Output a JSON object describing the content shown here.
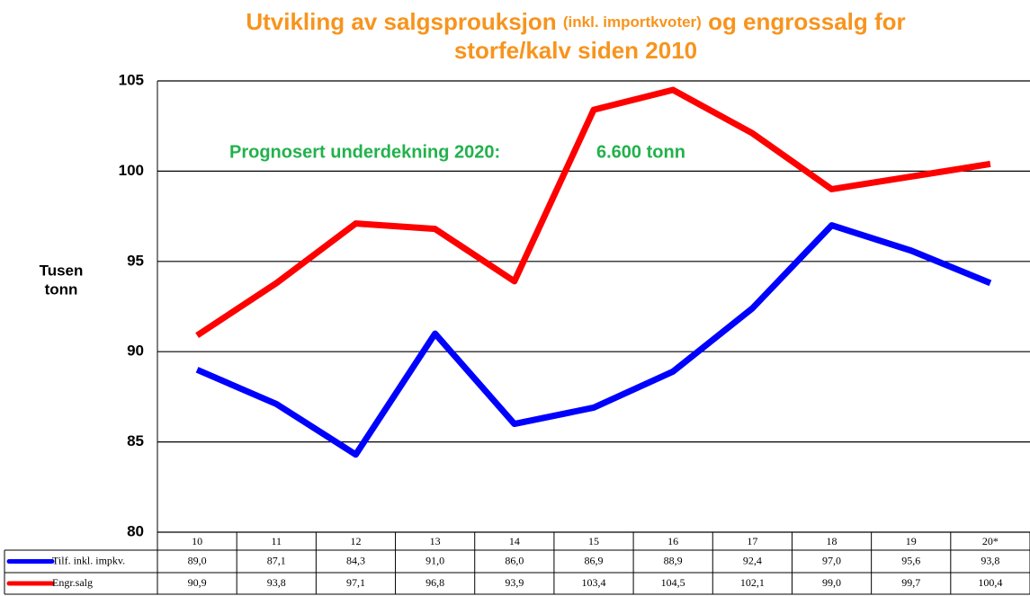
{
  "chart_data": {
    "type": "line",
    "title": [
      "Utvikling av salgsprouksjon ",
      "(inkl. importkvoter)",
      " og engrossalg for",
      "storfe/kalv siden 2010"
    ],
    "ylabel": [
      "Tusen",
      "tonn"
    ],
    "annotations": [
      "Prognosert underdekning 2020:",
      "6.600 tonn"
    ],
    "categories": [
      "10",
      "11",
      "12",
      "13",
      "14",
      "15",
      "16",
      "17",
      "18",
      "19",
      "20*"
    ],
    "series": [
      {
        "name": "Tilf. inkl. impkv.",
        "color": "#0000ff",
        "values": [
          89.0,
          87.1,
          84.3,
          91.0,
          86.0,
          86.9,
          88.9,
          92.4,
          97.0,
          95.6,
          93.8
        ],
        "value_labels": [
          "89,0",
          "87,1",
          "84,3",
          "91,0",
          "86,0",
          "86,9",
          "88,9",
          "92,4",
          "97,0",
          "95,6",
          "93,8"
        ]
      },
      {
        "name": "Engr.salg",
        "color": "#ff0000",
        "values": [
          90.9,
          93.8,
          97.1,
          96.8,
          93.9,
          103.4,
          104.5,
          102.1,
          99.0,
          99.7,
          100.4
        ],
        "value_labels": [
          "90,9",
          "93,8",
          "97,1",
          "96,8",
          "93,9",
          "103,4",
          "104,5",
          "102,1",
          "99,0",
          "99,7",
          "100,4"
        ]
      }
    ],
    "ylim": [
      80,
      105
    ],
    "yticks": [
      80,
      85,
      90,
      95,
      100,
      105
    ],
    "grid": true
  }
}
